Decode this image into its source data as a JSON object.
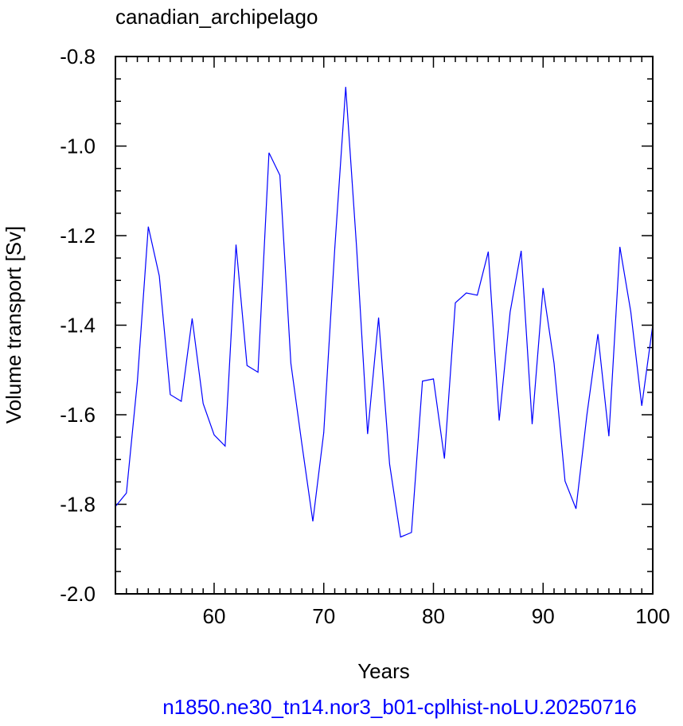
{
  "chart_data": {
    "type": "line",
    "title": "canadian_archipelago",
    "xlabel": "Years",
    "ylabel": "Volume transport [Sv]",
    "xlim": [
      51,
      100
    ],
    "ylim": [
      -2.0,
      -0.8
    ],
    "x_ticks": [
      60,
      70,
      80,
      90,
      100
    ],
    "x_tick_labels": [
      "60",
      "70",
      "80",
      "90",
      "100"
    ],
    "y_ticks": [
      -0.8,
      -1.0,
      -1.2,
      -1.4,
      -1.6,
      -1.8,
      -2.0
    ],
    "y_tick_labels": [
      "-0.8",
      "-1.0",
      "-1.2",
      "-1.4",
      "-1.6",
      "-1.8",
      "-2.0"
    ],
    "grid": false,
    "series": [
      {
        "color": "#0000ff",
        "x": [
          51,
          52,
          53,
          54,
          55,
          56,
          57,
          58,
          59,
          60,
          61,
          62,
          63,
          64,
          65,
          66,
          67,
          68,
          69,
          70,
          71,
          72,
          73,
          74,
          75,
          76,
          77,
          78,
          79,
          80,
          81,
          82,
          83,
          84,
          85,
          86,
          87,
          88,
          89,
          90,
          91,
          92,
          93,
          94,
          95,
          96,
          97,
          98,
          99,
          100
        ],
        "values": [
          -1.805,
          -1.775,
          -1.525,
          -1.18,
          -1.29,
          -1.555,
          -1.57,
          -1.385,
          -1.575,
          -1.645,
          -1.67,
          -1.22,
          -1.49,
          -1.505,
          -1.015,
          -1.065,
          -1.485,
          -1.665,
          -1.838,
          -1.64,
          -1.23,
          -0.868,
          -1.23,
          -1.643,
          -1.383,
          -1.71,
          -1.873,
          -1.863,
          -1.525,
          -1.52,
          -1.698,
          -1.35,
          -1.328,
          -1.333,
          -1.236,
          -1.613,
          -1.37,
          -1.234,
          -1.621,
          -1.317,
          -1.485,
          -1.748,
          -1.81,
          -1.6,
          -1.42,
          -1.648,
          -1.225,
          -1.37,
          -1.58,
          -1.4
        ]
      }
    ]
  },
  "caption": "n1850.ne30_tn14.nor3_b01-cplhist-noLU.20250716"
}
